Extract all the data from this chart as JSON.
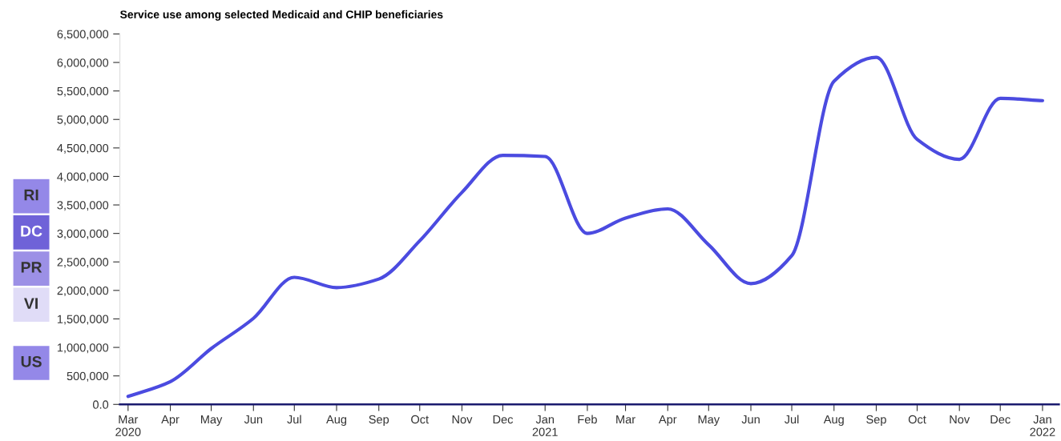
{
  "chart_data": {
    "type": "line",
    "title": "Service use among selected Medicaid and CHIP beneficiaries",
    "x": [
      "2020-03",
      "2020-04",
      "2020-05",
      "2020-06",
      "2020-07",
      "2020-08",
      "2020-09",
      "2020-10",
      "2020-11",
      "2020-12",
      "2021-01",
      "2021-02",
      "2021-03",
      "2021-04",
      "2021-05",
      "2021-06",
      "2021-07",
      "2021-08",
      "2021-09",
      "2021-10",
      "2021-11",
      "2021-12",
      "2022-01"
    ],
    "series": [
      {
        "color": "#4b4be0",
        "values": [
          140000,
          400000,
          980000,
          1510000,
          2230000,
          2050000,
          2200000,
          2870000,
          3720000,
          4370000,
          4350000,
          3000000,
          3270000,
          3430000,
          2800000,
          2120000,
          2610000,
          5670000,
          6090000,
          4650000,
          4300000,
          5370000,
          5330000
        ]
      }
    ],
    "xlim": [
      "2020-02-24",
      "2022-01-13"
    ],
    "xticks": [
      {
        "value": "2020-03",
        "label": "Mar\n2020"
      },
      {
        "value": "2020-04",
        "label": "Apr"
      },
      {
        "value": "2020-05",
        "label": "May"
      },
      {
        "value": "2020-06",
        "label": "Jun"
      },
      {
        "value": "2020-07",
        "label": "Jul"
      },
      {
        "value": "2020-08",
        "label": "Aug"
      },
      {
        "value": "2020-09",
        "label": "Sep"
      },
      {
        "value": "2020-10",
        "label": "Oct"
      },
      {
        "value": "2020-11",
        "label": "Nov"
      },
      {
        "value": "2020-12",
        "label": "Dec"
      },
      {
        "value": "2021-01",
        "label": "Jan\n2021"
      },
      {
        "value": "2021-02",
        "label": "Feb"
      },
      {
        "value": "2021-03",
        "label": "Mar"
      },
      {
        "value": "2021-04",
        "label": "Apr"
      },
      {
        "value": "2021-05",
        "label": "May"
      },
      {
        "value": "2021-06",
        "label": "Jun"
      },
      {
        "value": "2021-07",
        "label": "Jul"
      },
      {
        "value": "2021-08",
        "label": "Aug"
      },
      {
        "value": "2021-09",
        "label": "Sep"
      },
      {
        "value": "2021-10",
        "label": "Oct"
      },
      {
        "value": "2021-11",
        "label": "Nov"
      },
      {
        "value": "2021-12",
        "label": "Dec"
      },
      {
        "value": "2022-01",
        "label": "Jan\n2022"
      }
    ],
    "ylim": [
      0,
      6500000
    ],
    "yticks": [
      {
        "value": 0,
        "label": "0.0"
      },
      {
        "value": 500000,
        "label": "500,000"
      },
      {
        "value": 1000000,
        "label": "1,000,000"
      },
      {
        "value": 1500000,
        "label": "1,500,000"
      },
      {
        "value": 2000000,
        "label": "2,000,000"
      },
      {
        "value": 2500000,
        "label": "2,500,000"
      },
      {
        "value": 3000000,
        "label": "3,000,000"
      },
      {
        "value": 3500000,
        "label": "3,500,000"
      },
      {
        "value": 4000000,
        "label": "4,000,000"
      },
      {
        "value": 4500000,
        "label": "4,500,000"
      },
      {
        "value": 5000000,
        "label": "5,000,000"
      },
      {
        "value": 5500000,
        "label": "5,500,000"
      },
      {
        "value": 6000000,
        "label": "6,000,000"
      },
      {
        "value": 6500000,
        "label": "6,500,000"
      }
    ],
    "annotations": [
      "RI",
      "DC",
      "PR",
      "VI",
      "US"
    ],
    "marker": "none",
    "line_style": "solid",
    "grid": false,
    "legend": false
  }
}
